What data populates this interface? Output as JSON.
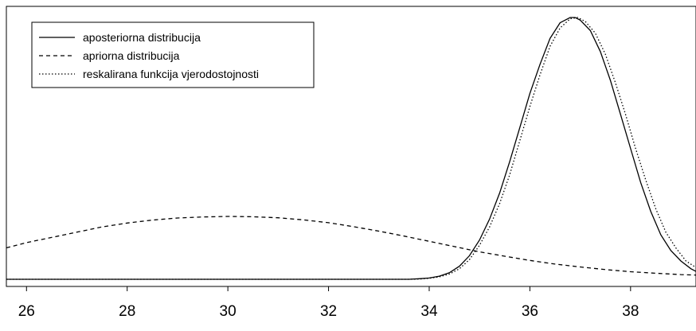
{
  "chart_data": {
    "type": "line",
    "title": "",
    "xlabel": "",
    "ylabel": "",
    "xlim": [
      25.6,
      39.3
    ],
    "ylim": [
      0,
      1
    ],
    "x_ticks": [
      "26",
      "28",
      "30",
      "32",
      "34",
      "36",
      "38"
    ],
    "grid": false,
    "legend_position": "top-left",
    "legend": [
      {
        "label": "aposteriorna distribucija",
        "style": "solid"
      },
      {
        "label": "apriorna distribucija",
        "style": "dashed"
      },
      {
        "label": "reskalirana funkcija vjerodostojnosti",
        "style": "dotted"
      }
    ],
    "series": [
      {
        "name": "aposteriorna distribucija",
        "style": "solid",
        "color": "#000000",
        "x": [
          25.6,
          33.6,
          33.8,
          34.0,
          34.2,
          34.4,
          34.6,
          34.8,
          35.0,
          35.2,
          35.4,
          35.6,
          35.8,
          36.0,
          36.2,
          36.4,
          36.6,
          36.8,
          36.9,
          37.0,
          37.2,
          37.4,
          37.6,
          37.8,
          38.0,
          38.2,
          38.4,
          38.6,
          38.8,
          39.0,
          39.2,
          39.3
        ],
        "y": [
          0.0,
          0.0,
          0.002,
          0.005,
          0.012,
          0.025,
          0.05,
          0.09,
          0.15,
          0.23,
          0.33,
          0.45,
          0.58,
          0.71,
          0.82,
          0.92,
          0.98,
          1.0,
          1.0,
          0.99,
          0.95,
          0.87,
          0.76,
          0.63,
          0.5,
          0.37,
          0.26,
          0.17,
          0.11,
          0.07,
          0.04,
          0.03
        ]
      },
      {
        "name": "apriorna distribucija",
        "style": "dashed",
        "color": "#000000",
        "x": [
          25.6,
          26.0,
          26.5,
          27.0,
          27.5,
          28.0,
          28.5,
          29.0,
          29.5,
          30.0,
          30.5,
          31.0,
          31.5,
          32.0,
          32.5,
          33.0,
          33.5,
          34.0,
          34.5,
          35.0,
          35.5,
          36.0,
          36.5,
          37.0,
          37.5,
          38.0,
          38.5,
          39.0,
          39.3
        ],
        "y": [
          0.12,
          0.14,
          0.16,
          0.18,
          0.2,
          0.215,
          0.226,
          0.234,
          0.238,
          0.24,
          0.239,
          0.235,
          0.227,
          0.216,
          0.201,
          0.184,
          0.165,
          0.145,
          0.125,
          0.105,
          0.088,
          0.072,
          0.058,
          0.047,
          0.037,
          0.029,
          0.023,
          0.018,
          0.016
        ]
      },
      {
        "name": "reskalirana funkcija vjerodostojnosti",
        "style": "dotted",
        "color": "#000000",
        "x": [
          25.6,
          33.6,
          33.8,
          34.0,
          34.2,
          34.4,
          34.6,
          34.8,
          35.0,
          35.2,
          35.4,
          35.6,
          35.8,
          36.0,
          36.2,
          36.4,
          36.6,
          36.8,
          36.95,
          37.1,
          37.3,
          37.5,
          37.7,
          37.9,
          38.1,
          38.3,
          38.5,
          38.7,
          38.9,
          39.1,
          39.3
        ],
        "y": [
          0.0,
          0.0,
          0.001,
          0.004,
          0.009,
          0.02,
          0.04,
          0.075,
          0.13,
          0.2,
          0.29,
          0.4,
          0.53,
          0.66,
          0.78,
          0.89,
          0.96,
          0.995,
          1.0,
          0.985,
          0.94,
          0.86,
          0.75,
          0.63,
          0.5,
          0.38,
          0.27,
          0.18,
          0.12,
          0.07,
          0.045
        ]
      }
    ]
  }
}
